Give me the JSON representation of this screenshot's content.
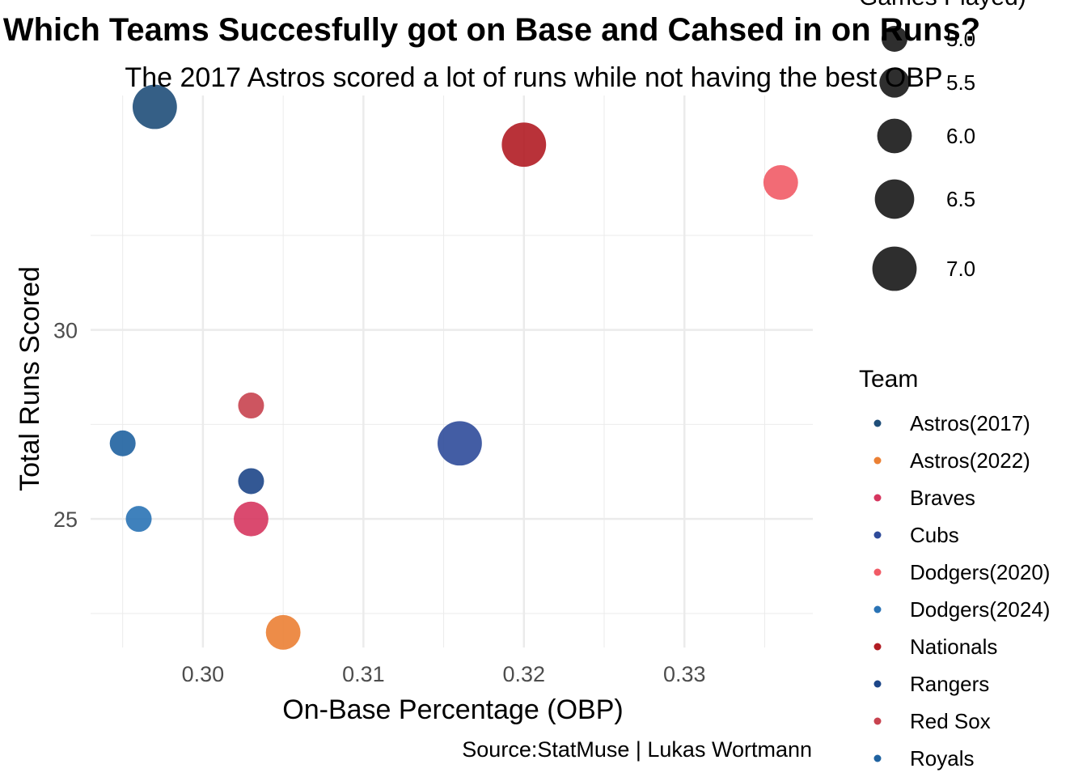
{
  "chart_data": {
    "type": "scatter",
    "title": "Which Teams Succesfully got on Base and Cahsed in on Runs?",
    "subtitle": "The 2017 Astros scored a lot of runs while not having the best OBP",
    "xlabel": "On-Base Percentage (OBP)",
    "ylabel": "Total Runs Scored",
    "caption": "Source:StatMuse | Lukas Wortmann",
    "xlim": [
      0.293,
      0.338
    ],
    "ylim": [
      21.6,
      36.2
    ],
    "x_ticks": [
      "0.30",
      "0.31",
      "0.32",
      "0.33"
    ],
    "x_tick_values": [
      0.3,
      0.31,
      0.32,
      0.33
    ],
    "y_ticks": [
      "25",
      "30"
    ],
    "y_tick_values": [
      25,
      30
    ],
    "grid": true,
    "size_legend": {
      "title": "Games Played)",
      "labels": [
        "5.0",
        "5.5",
        "6.0",
        "6.5",
        "7.0"
      ],
      "values": [
        5.0,
        5.5,
        6.0,
        6.5,
        7.0
      ],
      "color": "#000000"
    },
    "color_legend": {
      "title": "Team",
      "entries": [
        {
          "name": "Astros(2017)",
          "color": "#1f4e79"
        },
        {
          "name": "Astros(2022)",
          "color": "#eb8034"
        },
        {
          "name": "Braves",
          "color": "#d6365f"
        },
        {
          "name": "Cubs",
          "color": "#2f4b9a"
        },
        {
          "name": "Dodgers(2020)",
          "color": "#f15b66"
        },
        {
          "name": "Dodgers(2024)",
          "color": "#2a73b5"
        },
        {
          "name": "Nationals",
          "color": "#b11c23"
        },
        {
          "name": "Rangers",
          "color": "#1d4688"
        },
        {
          "name": "Red Sox",
          "color": "#c8434f"
        },
        {
          "name": "Royals",
          "color": "#1f62a0"
        }
      ]
    },
    "points": [
      {
        "team": "Astros(2017)",
        "x": 0.297,
        "y": 35.9,
        "games": 7
      },
      {
        "team": "Nationals",
        "x": 0.32,
        "y": 34.9,
        "games": 7
      },
      {
        "team": "Dodgers(2020)",
        "x": 0.336,
        "y": 33.9,
        "games": 6
      },
      {
        "team": "Red Sox",
        "x": 0.303,
        "y": 28.0,
        "games": 5
      },
      {
        "team": "Royals",
        "x": 0.295,
        "y": 27.0,
        "games": 5
      },
      {
        "team": "Cubs",
        "x": 0.316,
        "y": 27.0,
        "games": 7
      },
      {
        "team": "Rangers",
        "x": 0.303,
        "y": 26.0,
        "games": 5
      },
      {
        "team": "Dodgers(2024)",
        "x": 0.296,
        "y": 25.0,
        "games": 5
      },
      {
        "team": "Braves",
        "x": 0.303,
        "y": 25.0,
        "games": 6
      },
      {
        "team": "Astros(2022)",
        "x": 0.305,
        "y": 22.0,
        "games": 6
      }
    ]
  }
}
